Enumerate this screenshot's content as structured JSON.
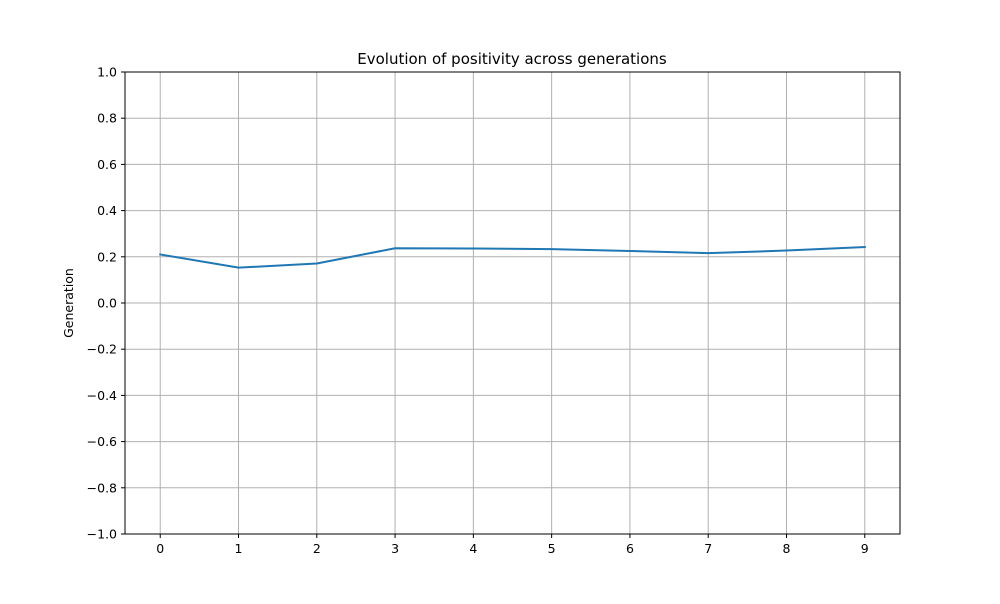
{
  "chart_data": {
    "type": "line",
    "title": "Evolution of positivity across generations",
    "xlabel": "",
    "ylabel": "Generation",
    "x": [
      0,
      1,
      2,
      3,
      4,
      5,
      6,
      7,
      8,
      9
    ],
    "series": [
      {
        "color": "#1f77b4",
        "values": [
          0.21,
          0.153,
          0.171,
          0.237,
          0.236,
          0.233,
          0.225,
          0.216,
          0.227,
          0.242
        ]
      }
    ],
    "xticks": [
      "0",
      "1",
      "2",
      "3",
      "4",
      "5",
      "6",
      "7",
      "8",
      "9"
    ],
    "yticks": [
      1.0,
      0.8,
      0.6,
      0.4,
      0.2,
      0.0,
      -0.2,
      -0.4,
      -0.6,
      -0.8,
      -1.0
    ],
    "ytick_labels": [
      "1.0",
      "0.8",
      "0.6",
      "0.4",
      "0.2",
      "0.0",
      "−0.2",
      "−0.4",
      "−0.6",
      "−0.8",
      "−1.0"
    ],
    "xlim": [
      -0.45,
      9.45
    ],
    "ylim": [
      -1.0,
      1.0
    ],
    "grid": true,
    "legend": "none"
  }
}
